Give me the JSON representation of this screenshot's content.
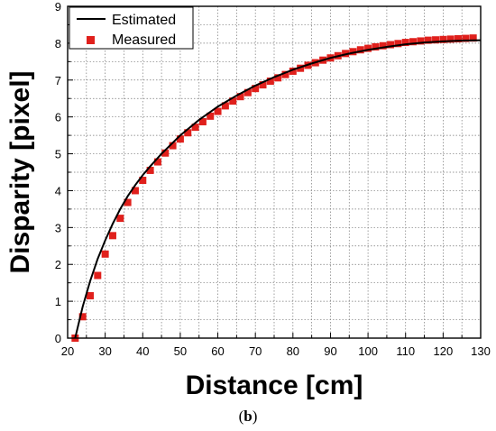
{
  "caption": {
    "open": "(",
    "letter": "b",
    "close": ")"
  },
  "chart_data": {
    "type": "scatter",
    "xlabel": "Distance [cm]",
    "ylabel": "Disparity [pixel]",
    "xlim": [
      20,
      130
    ],
    "ylim": [
      0,
      9
    ],
    "x_ticks": [
      20,
      30,
      40,
      50,
      60,
      70,
      80,
      90,
      100,
      110,
      120,
      130
    ],
    "y_ticks": [
      0,
      1,
      2,
      3,
      4,
      5,
      6,
      7,
      8,
      9
    ],
    "grid": true,
    "legend_position": "top-left",
    "series": [
      {
        "name": "Estimated",
        "kind": "line",
        "color": "#000000",
        "x": [
          22,
          24,
          26,
          28,
          30,
          32,
          34,
          36,
          38,
          40,
          42,
          45,
          50,
          55,
          60,
          65,
          70,
          75,
          80,
          85,
          90,
          95,
          100,
          105,
          110,
          115,
          120,
          125,
          130
        ],
        "y": [
          0.0,
          0.85,
          1.55,
          2.15,
          2.65,
          3.1,
          3.5,
          3.85,
          4.15,
          4.42,
          4.66,
          5.0,
          5.5,
          5.92,
          6.28,
          6.58,
          6.85,
          7.08,
          7.28,
          7.45,
          7.6,
          7.72,
          7.82,
          7.9,
          7.97,
          8.02,
          8.05,
          8.07,
          8.08
        ]
      },
      {
        "name": "Measured",
        "kind": "scatter",
        "color": "#e0201c",
        "x": [
          22,
          24,
          26,
          28,
          30,
          32,
          34,
          36,
          38,
          40,
          42,
          44,
          46,
          48,
          50,
          52,
          54,
          56,
          58,
          60,
          62,
          64,
          66,
          68,
          70,
          72,
          74,
          76,
          78,
          80,
          82,
          84,
          86,
          88,
          90,
          92,
          94,
          96,
          98,
          100,
          102,
          104,
          106,
          108,
          110,
          112,
          114,
          116,
          118,
          120,
          122,
          124,
          126,
          128
        ],
        "y": [
          0.0,
          0.58,
          1.15,
          1.7,
          2.28,
          2.78,
          3.25,
          3.68,
          4.0,
          4.28,
          4.55,
          4.78,
          5.02,
          5.22,
          5.4,
          5.57,
          5.72,
          5.87,
          6.02,
          6.15,
          6.3,
          6.43,
          6.55,
          6.66,
          6.77,
          6.87,
          6.97,
          7.06,
          7.15,
          7.24,
          7.32,
          7.4,
          7.47,
          7.54,
          7.6,
          7.66,
          7.72,
          7.77,
          7.82,
          7.86,
          7.9,
          7.93,
          7.96,
          7.99,
          8.02,
          8.04,
          8.06,
          8.08,
          8.09,
          8.1,
          8.11,
          8.12,
          8.13,
          8.14
        ]
      }
    ]
  }
}
